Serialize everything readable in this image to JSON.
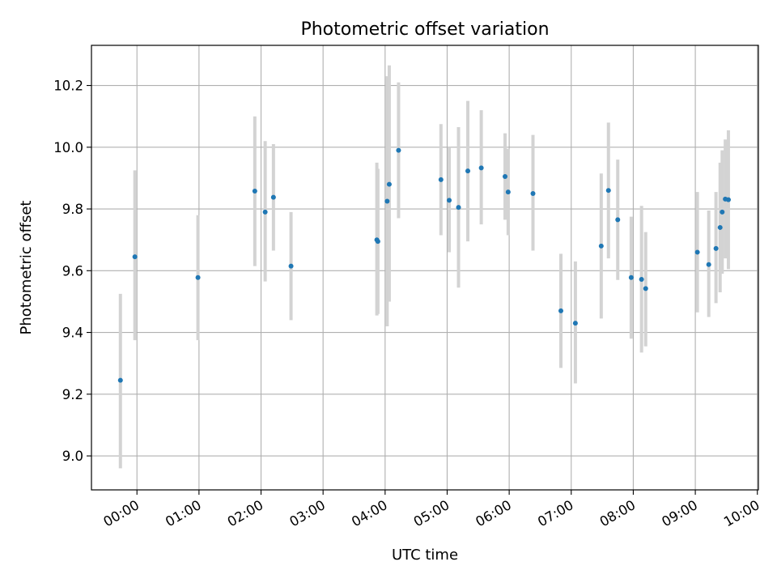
{
  "chart_data": {
    "type": "scatter",
    "title": "Photometric offset variation",
    "xlabel": "UTC time",
    "ylabel": "Photometric offset",
    "x_ticks": [
      "00:00",
      "01:00",
      "02:00",
      "03:00",
      "04:00",
      "05:00",
      "06:00",
      "07:00",
      "08:00",
      "09:00",
      "10:00"
    ],
    "y_ticks": [
      "9.0",
      "9.2",
      "9.4",
      "9.6",
      "9.8",
      "10.0",
      "10.2"
    ],
    "xlim": [
      "-00:44",
      "10:01"
    ],
    "ylim": [
      8.89,
      10.33
    ],
    "grid": true,
    "point_color": "#1f77b4",
    "errorbar_color": "#d3d3d3",
    "points": [
      {
        "x": "-00:16",
        "y": 9.245,
        "err_low": 8.96,
        "err_high": 9.525
      },
      {
        "x": "-00:02",
        "y": 9.645,
        "err_low": 9.375,
        "err_high": 9.925
      },
      {
        "x": "00:59",
        "y": 9.578,
        "err_low": 9.375,
        "err_high": 9.78
      },
      {
        "x": "01:54",
        "y": 9.858,
        "err_low": 9.615,
        "err_high": 10.1
      },
      {
        "x": "02:04",
        "y": 9.79,
        "err_low": 9.565,
        "err_high": 10.02
      },
      {
        "x": "02:12",
        "y": 9.838,
        "err_low": 9.665,
        "err_high": 10.01
      },
      {
        "x": "02:29",
        "y": 9.615,
        "err_low": 9.44,
        "err_high": 9.79
      },
      {
        "x": "03:52",
        "y": 9.7,
        "err_low": 9.455,
        "err_high": 9.95
      },
      {
        "x": "03:53",
        "y": 9.695,
        "err_low": 9.46,
        "err_high": 9.93
      },
      {
        "x": "04:02",
        "y": 9.825,
        "err_low": 9.42,
        "err_high": 10.23
      },
      {
        "x": "04:04",
        "y": 9.88,
        "err_low": 9.5,
        "err_high": 10.265
      },
      {
        "x": "04:13",
        "y": 9.99,
        "err_low": 9.77,
        "err_high": 10.21
      },
      {
        "x": "04:54",
        "y": 9.895,
        "err_low": 9.715,
        "err_high": 10.075
      },
      {
        "x": "05:02",
        "y": 9.828,
        "err_low": 9.66,
        "err_high": 10.0
      },
      {
        "x": "05:11",
        "y": 9.805,
        "err_low": 9.545,
        "err_high": 10.065
      },
      {
        "x": "05:20",
        "y": 9.923,
        "err_low": 9.695,
        "err_high": 10.15
      },
      {
        "x": "05:33",
        "y": 9.933,
        "err_low": 9.75,
        "err_high": 10.12
      },
      {
        "x": "05:56",
        "y": 9.905,
        "err_low": 9.765,
        "err_high": 10.045
      },
      {
        "x": "05:59",
        "y": 9.855,
        "err_low": 9.715,
        "err_high": 9.995
      },
      {
        "x": "06:23",
        "y": 9.85,
        "err_low": 9.665,
        "err_high": 10.04
      },
      {
        "x": "06:50",
        "y": 9.47,
        "err_low": 9.285,
        "err_high": 9.655
      },
      {
        "x": "07:04",
        "y": 9.43,
        "err_low": 9.235,
        "err_high": 9.63
      },
      {
        "x": "07:29",
        "y": 9.68,
        "err_low": 9.445,
        "err_high": 9.915
      },
      {
        "x": "07:36",
        "y": 9.86,
        "err_low": 9.64,
        "err_high": 10.08
      },
      {
        "x": "07:45",
        "y": 9.765,
        "err_low": 9.57,
        "err_high": 9.96
      },
      {
        "x": "07:58",
        "y": 9.578,
        "err_low": 9.38,
        "err_high": 9.775
      },
      {
        "x": "08:08",
        "y": 9.572,
        "err_low": 9.335,
        "err_high": 9.81
      },
      {
        "x": "08:12",
        "y": 9.542,
        "err_low": 9.355,
        "err_high": 9.725
      },
      {
        "x": "09:02",
        "y": 9.66,
        "err_low": 9.465,
        "err_high": 9.855
      },
      {
        "x": "09:13",
        "y": 9.62,
        "err_low": 9.45,
        "err_high": 9.795
      },
      {
        "x": "09:20",
        "y": 9.672,
        "err_low": 9.495,
        "err_high": 9.855
      },
      {
        "x": "09:24",
        "y": 9.74,
        "err_low": 9.53,
        "err_high": 9.95
      },
      {
        "x": "09:26",
        "y": 9.79,
        "err_low": 9.59,
        "err_high": 9.99
      },
      {
        "x": "09:29",
        "y": 9.832,
        "err_low": 9.64,
        "err_high": 10.025
      },
      {
        "x": "09:32",
        "y": 9.83,
        "err_low": 9.605,
        "err_high": 10.055
      }
    ]
  }
}
